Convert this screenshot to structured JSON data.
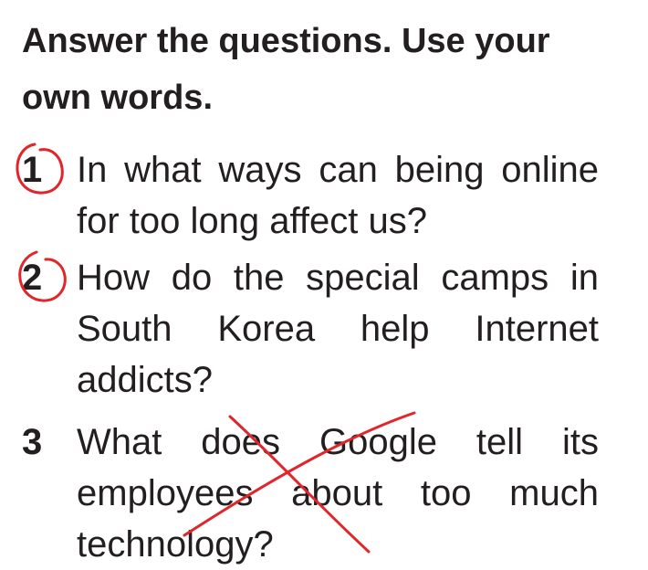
{
  "heading": "Answer the questions. Use your own words.",
  "questions": [
    {
      "number": "1",
      "text": "In what ways can being online for too long affect us?",
      "mark": "circled"
    },
    {
      "number": "2",
      "text": "How do the special camps in South Korea help Internet addicts?",
      "mark": "circled"
    },
    {
      "number": "3",
      "text": "What does Google tell its employees about too much technology?",
      "mark": "crossed-out"
    }
  ],
  "annotation_color": "#e0262b"
}
